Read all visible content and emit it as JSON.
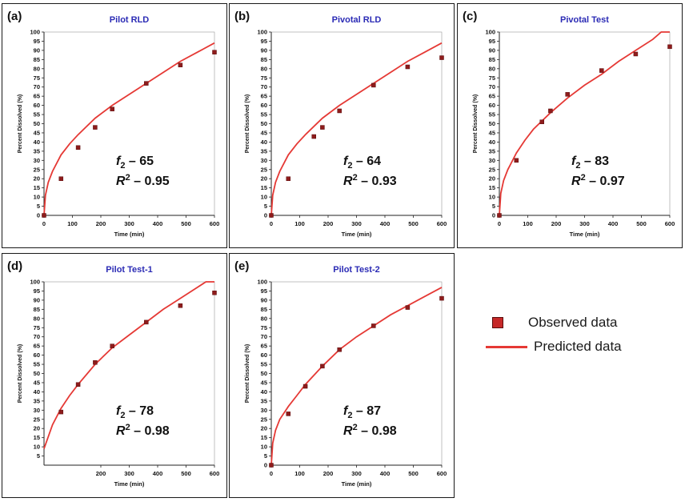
{
  "legend": {
    "observed_label": "Observed data",
    "predicted_label": "Predicted data",
    "observed_color": "#c62828",
    "predicted_color": "#e53935"
  },
  "chart_data": [
    {
      "type": "scatter",
      "panel_label": "(a)",
      "title": "Pilot RLD",
      "xlabel": "Time (min)",
      "ylabel": "Percent Dissolved (%)",
      "xlim": [
        0,
        600
      ],
      "ylim": [
        0,
        100
      ],
      "xticks": [
        0,
        100,
        200,
        300,
        400,
        500,
        600
      ],
      "yticks": [
        0,
        5,
        10,
        15,
        20,
        25,
        30,
        35,
        40,
        45,
        50,
        55,
        60,
        65,
        70,
        75,
        80,
        85,
        90,
        95,
        100
      ],
      "f2_value": "65",
      "r2_value": "0.95",
      "observed": {
        "x": [
          0,
          60,
          120,
          180,
          240,
          360,
          480,
          600
        ],
        "y": [
          0,
          20,
          37,
          48,
          58,
          72,
          82,
          89
        ]
      },
      "predicted": {
        "x": [
          0,
          5,
          15,
          30,
          60,
          90,
          120,
          180,
          240,
          300,
          360,
          420,
          480,
          540,
          600
        ],
        "y": [
          0,
          11,
          18,
          24,
          33,
          39,
          44,
          53,
          60,
          66,
          72,
          78,
          84,
          89,
          94
        ]
      }
    },
    {
      "type": "scatter",
      "panel_label": "(b)",
      "title": "Pivotal RLD",
      "xlabel": "Time (min)",
      "ylabel": "Percent Dissolved (%)",
      "xlim": [
        0,
        600
      ],
      "ylim": [
        0,
        100
      ],
      "xticks": [
        0,
        100,
        200,
        300,
        400,
        500,
        600
      ],
      "yticks": [
        0,
        5,
        10,
        15,
        20,
        25,
        30,
        35,
        40,
        45,
        50,
        55,
        60,
        65,
        70,
        75,
        80,
        85,
        90,
        95,
        100
      ],
      "f2_value": "64",
      "r2_value": "0.93",
      "observed": {
        "x": [
          0,
          60,
          150,
          180,
          240,
          360,
          480,
          600
        ],
        "y": [
          0,
          20,
          43,
          48,
          57,
          71,
          81,
          86
        ]
      },
      "predicted": {
        "x": [
          0,
          5,
          15,
          30,
          60,
          90,
          120,
          180,
          240,
          300,
          360,
          420,
          480,
          540,
          600
        ],
        "y": [
          0,
          11,
          18,
          24,
          33,
          39,
          44,
          53,
          60,
          66,
          72,
          78,
          84,
          89,
          94
        ]
      }
    },
    {
      "type": "scatter",
      "panel_label": "(c)",
      "title": "Pivotal Test",
      "xlabel": "Time (min)",
      "ylabel": "Percent Dissolved (%)",
      "xlim": [
        0,
        600
      ],
      "ylim": [
        0,
        100
      ],
      "xticks": [
        0,
        100,
        200,
        300,
        400,
        500,
        600
      ],
      "yticks": [
        0,
        5,
        10,
        15,
        20,
        25,
        30,
        35,
        40,
        45,
        50,
        55,
        60,
        65,
        70,
        75,
        80,
        85,
        90,
        95,
        100
      ],
      "f2_value": "83",
      "r2_value": "0.97",
      "observed": {
        "x": [
          0,
          60,
          150,
          180,
          240,
          360,
          480,
          600
        ],
        "y": [
          0,
          30,
          51,
          57,
          66,
          79,
          88,
          92
        ]
      },
      "predicted": {
        "x": [
          0,
          5,
          15,
          30,
          60,
          90,
          120,
          180,
          240,
          300,
          360,
          420,
          480,
          540,
          570,
          600
        ],
        "y": [
          0,
          12,
          19,
          25,
          34,
          41,
          47,
          56,
          64,
          71,
          77,
          84,
          90,
          96,
          100,
          100
        ]
      }
    },
    {
      "type": "scatter",
      "panel_label": "(d)",
      "title": "Pilot Test-1",
      "xlabel": "Time (min)",
      "ylabel": "Percent Dissolved (%)",
      "xlim": [
        0,
        600
      ],
      "ylim": [
        0,
        100
      ],
      "xticks": [
        200,
        300,
        400,
        500,
        600
      ],
      "yticks": [
        5,
        10,
        15,
        20,
        25,
        30,
        35,
        40,
        45,
        50,
        55,
        60,
        65,
        70,
        75,
        80,
        85,
        90,
        95,
        100
      ],
      "f2_value": "78",
      "r2_value": "0.98",
      "observed": {
        "x": [
          60,
          120,
          180,
          240,
          360,
          480,
          600
        ],
        "y": [
          29,
          44,
          56,
          65,
          78,
          87,
          94
        ]
      },
      "predicted": {
        "x": [
          0,
          30,
          60,
          90,
          120,
          180,
          240,
          300,
          360,
          420,
          480,
          540,
          570,
          600
        ],
        "y": [
          9,
          22,
          31,
          38,
          44,
          55,
          64,
          71,
          78,
          85,
          91,
          97,
          100,
          100
        ]
      }
    },
    {
      "type": "scatter",
      "panel_label": "(e)",
      "title": "Pilot Test-2",
      "xlabel": "Time (min)",
      "ylabel": "Percent Dissolved (%)",
      "xlim": [
        0,
        600
      ],
      "ylim": [
        0,
        100
      ],
      "xticks": [
        0,
        100,
        200,
        300,
        400,
        500,
        600
      ],
      "yticks": [
        0,
        5,
        10,
        15,
        20,
        25,
        30,
        35,
        40,
        45,
        50,
        55,
        60,
        65,
        70,
        75,
        80,
        85,
        90,
        95,
        100
      ],
      "f2_value": "87",
      "r2_value": "0.98",
      "observed": {
        "x": [
          0,
          60,
          120,
          180,
          240,
          360,
          480,
          600
        ],
        "y": [
          0,
          28,
          43,
          54,
          63,
          76,
          86,
          91
        ]
      },
      "predicted": {
        "x": [
          0,
          5,
          15,
          30,
          60,
          90,
          120,
          180,
          240,
          300,
          360,
          420,
          480,
          540,
          600
        ],
        "y": [
          0,
          12,
          19,
          25,
          32,
          38,
          44,
          54,
          63,
          70,
          76,
          82,
          87,
          92,
          97
        ]
      }
    }
  ]
}
